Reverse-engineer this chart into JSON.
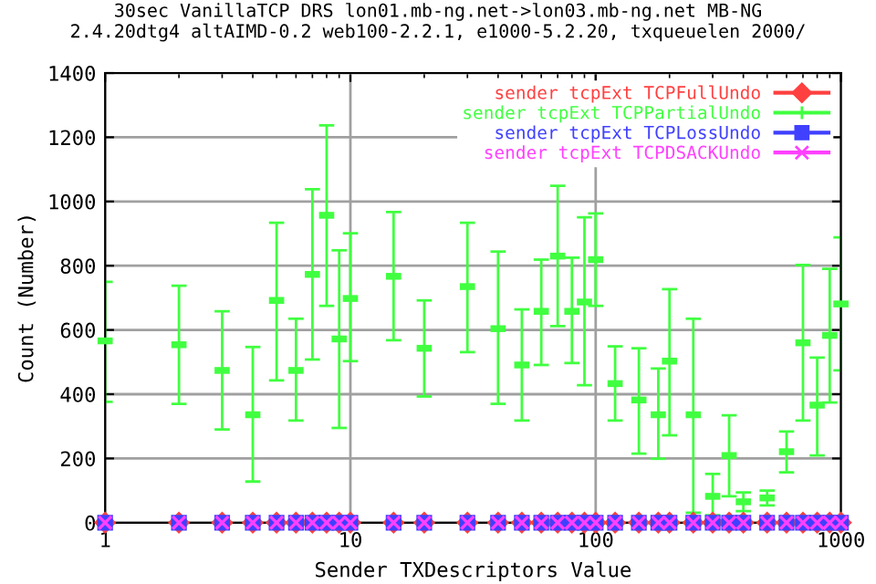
{
  "chart_data": {
    "type": "scatter",
    "title": "30sec VanillaTCP DRS lon01.mb-ng.net->lon03.mb-ng.net MB-NG\n2.4.20dtg4 altAIMD-0.2 web100-2.2.1, e1000-5.2.20, txqueuelen 2000/",
    "xlabel": "Sender TXDescriptors Value",
    "ylabel": "Count (Number)",
    "x": [
      1,
      2,
      3,
      4,
      5,
      6,
      7,
      8,
      9,
      10,
      15,
      20,
      30,
      40,
      50,
      60,
      70,
      80,
      90,
      100,
      120,
      150,
      180,
      200,
      250,
      300,
      350,
      400,
      500,
      600,
      700,
      800,
      900,
      1000
    ],
    "log": "x",
    "xlim": [
      1,
      1000
    ],
    "xticks": [
      1,
      10,
      100,
      1000
    ],
    "ylim": [
      0,
      1400
    ],
    "yticks": [
      0,
      200,
      400,
      600,
      800,
      1000,
      1200,
      1400
    ],
    "grid": true,
    "legend": "top right",
    "series": [
      {
        "name": "sender tcpExt TCPFullUndo",
        "color": "#ff4040",
        "marker": "diamond",
        "values": [
          0,
          0,
          0,
          0,
          0,
          0,
          0,
          0,
          0,
          0,
          0,
          0,
          0,
          0,
          0,
          0,
          0,
          0,
          0,
          0,
          0,
          0,
          0,
          0,
          0,
          0,
          0,
          0,
          0,
          0,
          0,
          0,
          0,
          0
        ]
      },
      {
        "name": "sender tcpExt TCPPartialUndo",
        "color": "#40ff40",
        "values": [
          566,
          554,
          474,
          336,
          692,
          474,
          773,
          957,
          572,
          698,
          767,
          543,
          735,
          604,
          491,
          658,
          830,
          658,
          687,
          819,
          433,
          382,
          336,
          503,
          336,
          82,
          209,
          65,
          77,
          221,
          560,
          366,
          583,
          681
        ],
        "errors": [
          [
            376,
            750
          ],
          [
            370,
            738
          ],
          [
            290,
            658
          ],
          [
            128,
            547
          ],
          [
            443,
            934
          ],
          [
            318,
            635
          ],
          [
            508,
            1038
          ],
          [
            675,
            1237
          ],
          [
            295,
            848
          ],
          [
            503,
            901
          ],
          [
            568,
            967
          ],
          [
            393,
            692
          ],
          [
            531,
            934
          ],
          [
            370,
            844
          ],
          [
            318,
            664
          ],
          [
            491,
            819
          ],
          [
            612,
            1049
          ],
          [
            497,
            825
          ],
          [
            428,
            951
          ],
          [
            675,
            963
          ],
          [
            318,
            549
          ],
          [
            215,
            543
          ],
          [
            199,
            480
          ],
          [
            272,
            727
          ],
          [
            31,
            635
          ],
          [
            23,
            152
          ],
          [
            82,
            334
          ],
          [
            36,
            94
          ],
          [
            54,
            100
          ],
          [
            157,
            284
          ],
          [
            318,
            802
          ],
          [
            209,
            514
          ],
          [
            374,
            790
          ],
          [
            474,
            888
          ]
        ]
      },
      {
        "name": "sender tcpExt TCPLossUndo",
        "color": "#4040ff",
        "marker": "square",
        "values": [
          0,
          0,
          0,
          0,
          0,
          0,
          0,
          0,
          0,
          0,
          0,
          0,
          0,
          0,
          0,
          0,
          0,
          0,
          0,
          0,
          0,
          0,
          0,
          0,
          0,
          0,
          0,
          0,
          0,
          0,
          0,
          0,
          0,
          0
        ]
      },
      {
        "name": "sender tcpExt TCPDSACKUndo",
        "color": "#ff40ff",
        "marker": "cross",
        "values": [
          0,
          0,
          0,
          0,
          0,
          0,
          0,
          0,
          0,
          0,
          0,
          0,
          0,
          0,
          0,
          0,
          0,
          0,
          0,
          0,
          0,
          0,
          0,
          0,
          0,
          0,
          0,
          0,
          0,
          0,
          0,
          0,
          0,
          0
        ]
      }
    ]
  }
}
